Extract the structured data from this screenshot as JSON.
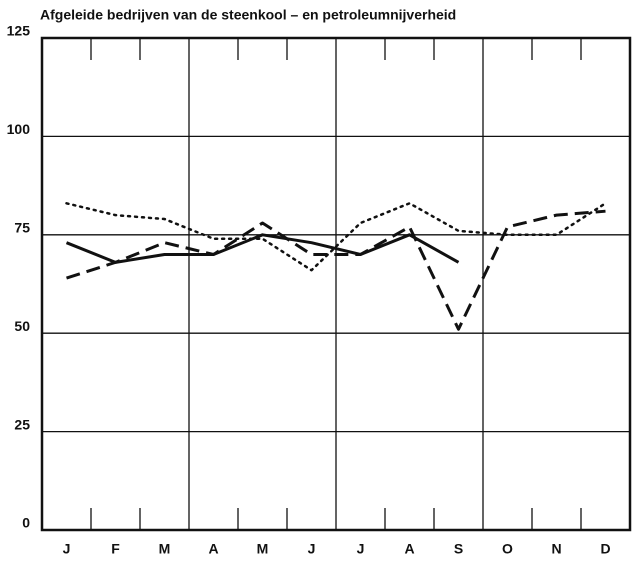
{
  "chart_data": {
    "type": "line",
    "title": "Afgeleide bedrijven van de steenkool – en petroleumnijverheid",
    "categories": [
      "J",
      "F",
      "M",
      "A",
      "M",
      "J",
      "J",
      "A",
      "S",
      "O",
      "N",
      "D"
    ],
    "series": [
      {
        "color": "#111111",
        "style": "dotted",
        "values": [
          83,
          80,
          79,
          74,
          74,
          66,
          78,
          83,
          76,
          75,
          75,
          83
        ]
      },
      {
        "color": "#111111",
        "style": "dashed",
        "values": [
          64,
          68,
          73,
          70,
          78,
          70,
          70,
          77,
          51,
          77,
          80,
          81
        ]
      },
      {
        "color": "#111111",
        "style": "solid",
        "values": [
          73,
          68,
          70,
          70,
          75,
          73,
          70,
          75,
          68,
          null,
          null,
          null
        ]
      }
    ],
    "ylim": [
      0,
      125
    ],
    "yticks": [
      0,
      25,
      50,
      75,
      100,
      125
    ],
    "grid": true
  }
}
